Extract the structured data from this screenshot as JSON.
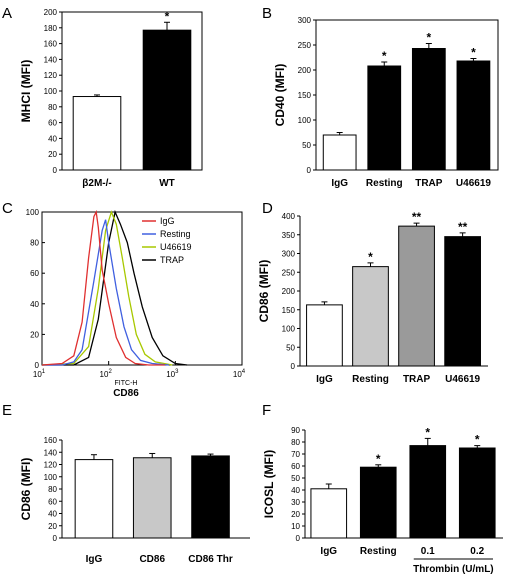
{
  "chart_data": [
    {
      "panel": "A",
      "type": "bar",
      "ylabel": "MHCI (MFI)",
      "ylim": [
        0,
        200
      ],
      "yticks": [
        "0",
        "20",
        "40",
        "60",
        "80",
        "100",
        "120",
        "140",
        "160",
        "180",
        "200"
      ],
      "categories": [
        "β2M-/-",
        "WT"
      ],
      "values": [
        93,
        177
      ],
      "errors": [
        2,
        10
      ],
      "fills": [
        "#ffffff",
        "#000000"
      ],
      "stars": [
        "",
        "*"
      ]
    },
    {
      "panel": "B",
      "type": "bar",
      "ylabel": "CD40 (MFI)",
      "ylim": [
        0,
        300
      ],
      "yticks": [
        "0",
        "50",
        "100",
        "150",
        "200",
        "250",
        "300"
      ],
      "categories": [
        "IgG",
        "Resting",
        "TRAP",
        "U46619"
      ],
      "values": [
        70,
        208,
        243,
        218
      ],
      "errors": [
        5,
        8,
        10,
        5
      ],
      "fills": [
        "#ffffff",
        "#000000",
        "#000000",
        "#000000"
      ],
      "stars": [
        "",
        "*",
        "*",
        "*"
      ]
    },
    {
      "panel": "C",
      "type": "line",
      "xlabel": "CD86",
      "axis_caption": "FITC-H",
      "xscale": "log",
      "xlim": [
        10,
        10000
      ],
      "ylim": [
        0,
        100
      ],
      "yticks": [
        "0",
        "20",
        "40",
        "60",
        "80",
        "100"
      ],
      "legend_position": "top-right",
      "series": [
        {
          "name": "IgG",
          "color": "#e03030",
          "peak": 65,
          "width": 0.17,
          "x": [
            10,
            20,
            30,
            40,
            50,
            60,
            65,
            70,
            80,
            100,
            130,
            180,
            250,
            400,
            700
          ],
          "y": [
            0,
            1,
            6,
            28,
            70,
            97,
            100,
            90,
            62,
            40,
            18,
            5,
            1,
            0,
            0
          ]
        },
        {
          "name": "Resting",
          "color": "#4060e0",
          "peak": 90,
          "width": 0.2,
          "x": [
            10,
            20,
            30,
            40,
            60,
            80,
            90,
            100,
            130,
            170,
            220,
            300,
            450,
            800
          ],
          "y": [
            0,
            0,
            2,
            10,
            55,
            88,
            95,
            80,
            50,
            25,
            10,
            3,
            1,
            0
          ]
        },
        {
          "name": "U46619",
          "color": "#a8c800",
          "peak": 110,
          "width": 0.2,
          "x": [
            10,
            30,
            50,
            70,
            90,
            110,
            130,
            160,
            200,
            260,
            350,
            500,
            900
          ],
          "y": [
            0,
            1,
            12,
            50,
            88,
            100,
            92,
            70,
            45,
            20,
            7,
            2,
            0
          ]
        },
        {
          "name": "TRAP",
          "color": "#000000",
          "peak": 125,
          "width": 0.23,
          "x": [
            10,
            30,
            50,
            70,
            100,
            125,
            150,
            190,
            240,
            320,
            450,
            650,
            1000,
            1500
          ],
          "y": [
            0,
            0,
            5,
            30,
            80,
            100,
            92,
            80,
            60,
            38,
            18,
            6,
            1,
            0
          ]
        }
      ],
      "xtick_exponents": [
        "1",
        "2",
        "3",
        "4"
      ]
    },
    {
      "panel": "D",
      "type": "bar",
      "ylabel": "CD86 (MFI)",
      "ylim": [
        0,
        400
      ],
      "yticks": [
        "0",
        "50",
        "100",
        "150",
        "200",
        "250",
        "300",
        "350",
        "400"
      ],
      "categories": [
        "IgG",
        "Resting",
        "TRAP",
        "U46619"
      ],
      "values": [
        163,
        265,
        373,
        345
      ],
      "errors": [
        8,
        10,
        8,
        10
      ],
      "fills": [
        "#ffffff",
        "#c8c8c8",
        "#9a9a9a",
        "#000000"
      ],
      "stars": [
        "",
        "*",
        "**",
        "**"
      ]
    },
    {
      "panel": "E",
      "type": "bar",
      "ylabel": "CD86 (MFI)",
      "ylim": [
        0,
        160
      ],
      "yticks": [
        "0",
        "20",
        "40",
        "60",
        "80",
        "100",
        "120",
        "140",
        "160"
      ],
      "categories": [
        "IgG",
        "CD86",
        "CD86 Thr"
      ],
      "values": [
        128,
        131,
        134
      ],
      "errors": [
        8,
        7,
        3
      ],
      "fills": [
        "#ffffff",
        "#c8c8c8",
        "#000000"
      ],
      "stars": [
        "",
        "",
        ""
      ]
    },
    {
      "panel": "F",
      "type": "bar",
      "ylabel": "ICOSL (MFI)",
      "ylim": [
        0,
        90
      ],
      "yticks": [
        "0",
        "10",
        "20",
        "30",
        "40",
        "50",
        "60",
        "70",
        "80",
        "90"
      ],
      "categories": [
        "IgG",
        "Resting",
        "0.1",
        "0.2"
      ],
      "values": [
        41,
        59,
        77,
        75
      ],
      "errors": [
        4,
        2,
        6,
        2
      ],
      "fills": [
        "#ffffff",
        "#000000",
        "#000000",
        "#000000"
      ],
      "stars": [
        "",
        "*",
        "*",
        "*"
      ],
      "group_label": "Thrombin (U/mL)"
    }
  ]
}
